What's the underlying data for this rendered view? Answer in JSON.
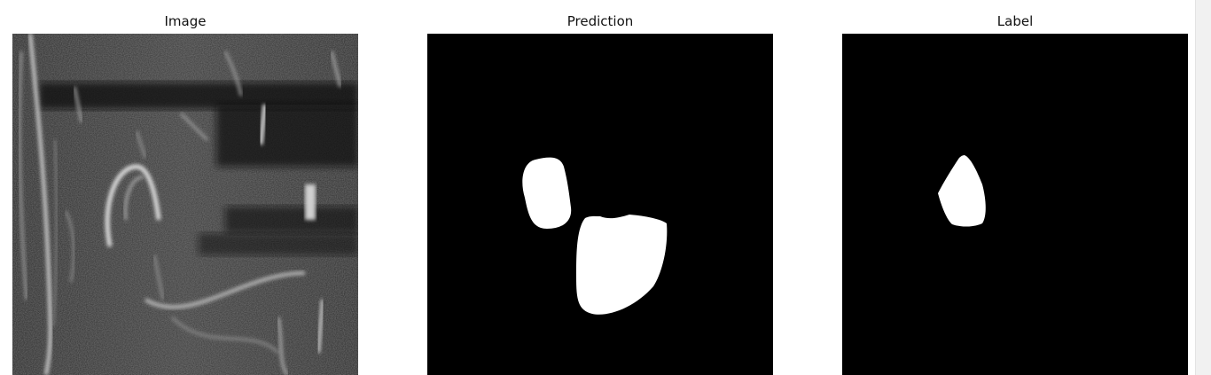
{
  "figure": {
    "panels": [
      {
        "title": "Image",
        "kind": "grayscale-ultrasound"
      },
      {
        "title": "Prediction",
        "kind": "binary-mask"
      },
      {
        "title": "Label",
        "kind": "binary-mask"
      }
    ]
  },
  "colors": {
    "background": "#ffffff",
    "mask_background": "#000000",
    "mask_foreground": "#ffffff",
    "scrollbar": "#f1f1f1"
  }
}
